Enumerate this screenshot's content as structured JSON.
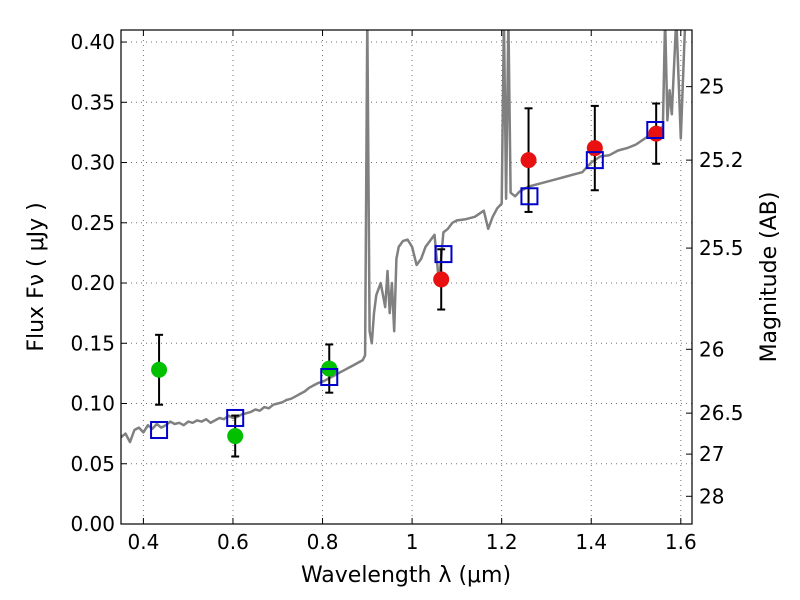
{
  "chart_data": {
    "type": "scatter",
    "xlabel": "Wavelength  λ (μm)",
    "ylabel": "Flux  Fν  ( μJy )",
    "ylabel_right": "Magnitude (AB)",
    "xlim": [
      0.35,
      1.625
    ],
    "ylim": [
      0.0,
      0.41
    ],
    "xticks": [
      0.4,
      0.6,
      0.8,
      1.0,
      1.2,
      1.4,
      1.6
    ],
    "xtick_labels": [
      "0.4",
      "0.6",
      "0.8",
      "1",
      "1.2",
      "1.4",
      "1.6"
    ],
    "yticks": [
      0.0,
      0.05,
      0.1,
      0.15,
      0.2,
      0.25,
      0.3,
      0.35,
      0.4
    ],
    "ytick_labels": [
      "0.00",
      "0.05",
      "0.10",
      "0.15",
      "0.20",
      "0.25",
      "0.30",
      "0.35",
      "0.40"
    ],
    "right_ticks": [
      {
        "label": "25",
        "flux": 0.363
      },
      {
        "label": "25.2",
        "flux": 0.302
      },
      {
        "label": "25.5",
        "flux": 0.229
      },
      {
        "label": "26",
        "flux": 0.145
      },
      {
        "label": "26.5",
        "flux": 0.092
      },
      {
        "label": "27",
        "flux": 0.058
      },
      {
        "label": "28",
        "flux": 0.023
      }
    ],
    "grid": true,
    "colors": {
      "model": "#808080",
      "green": "#00c000",
      "red": "#e81010",
      "model_points": "#0000cc",
      "errorbar": "#000000"
    },
    "series": [
      {
        "kind": "line",
        "x": [
          0.35,
          0.36,
          0.37,
          0.38,
          0.39,
          0.4,
          0.41,
          0.42,
          0.43,
          0.44,
          0.45,
          0.46,
          0.47,
          0.48,
          0.49,
          0.5,
          0.51,
          0.52,
          0.53,
          0.54,
          0.55,
          0.56,
          0.57,
          0.58,
          0.59,
          0.6,
          0.61,
          0.62,
          0.63,
          0.64,
          0.65,
          0.66,
          0.67,
          0.68,
          0.69,
          0.7,
          0.71,
          0.72,
          0.73,
          0.74,
          0.75,
          0.76,
          0.77,
          0.78,
          0.79,
          0.8,
          0.81,
          0.82,
          0.83,
          0.84,
          0.85,
          0.86,
          0.87,
          0.88,
          0.89,
          0.895,
          0.9,
          0.905,
          0.91,
          0.915,
          0.92,
          0.93,
          0.94,
          0.945,
          0.95,
          0.955,
          0.96,
          0.965,
          0.97,
          0.98,
          0.99,
          1.0,
          1.01,
          1.02,
          1.03,
          1.04,
          1.05,
          1.06,
          1.07,
          1.08,
          1.09,
          1.1,
          1.12,
          1.14,
          1.16,
          1.17,
          1.18,
          1.19,
          1.2,
          1.205,
          1.21,
          1.215,
          1.22,
          1.23,
          1.24,
          1.26,
          1.28,
          1.3,
          1.32,
          1.34,
          1.36,
          1.38,
          1.4,
          1.42,
          1.44,
          1.46,
          1.48,
          1.5,
          1.52,
          1.54,
          1.56,
          1.565,
          1.57,
          1.575,
          1.58,
          1.59,
          1.6,
          1.61,
          1.62
        ],
        "y": [
          0.072,
          0.075,
          0.068,
          0.078,
          0.08,
          0.076,
          0.082,
          0.079,
          0.083,
          0.08,
          0.082,
          0.085,
          0.083,
          0.084,
          0.082,
          0.085,
          0.084,
          0.086,
          0.085,
          0.087,
          0.084,
          0.086,
          0.088,
          0.087,
          0.09,
          0.088,
          0.089,
          0.091,
          0.092,
          0.093,
          0.095,
          0.094,
          0.097,
          0.096,
          0.099,
          0.1,
          0.101,
          0.103,
          0.104,
          0.106,
          0.108,
          0.11,
          0.113,
          0.115,
          0.117,
          0.118,
          0.12,
          0.122,
          0.124,
          0.126,
          0.128,
          0.13,
          0.132,
          0.134,
          0.136,
          0.14,
          0.42,
          0.16,
          0.15,
          0.175,
          0.19,
          0.2,
          0.18,
          0.21,
          0.175,
          0.2,
          0.16,
          0.22,
          0.23,
          0.235,
          0.236,
          0.23,
          0.215,
          0.22,
          0.23,
          0.235,
          0.24,
          0.2,
          0.242,
          0.245,
          0.25,
          0.252,
          0.253,
          0.255,
          0.26,
          0.245,
          0.255,
          0.262,
          0.266,
          0.42,
          0.27,
          0.42,
          0.275,
          0.272,
          0.276,
          0.28,
          0.282,
          0.284,
          0.286,
          0.288,
          0.29,
          0.292,
          0.3,
          0.305,
          0.306,
          0.31,
          0.312,
          0.315,
          0.32,
          0.325,
          0.33,
          0.42,
          0.335,
          0.36,
          0.34,
          0.42,
          0.32,
          0.42,
          0.42
        ]
      },
      {
        "kind": "scatter-errorbar",
        "marker": "circle",
        "x": [
          0.435,
          0.605,
          0.815
        ],
        "y": [
          0.128,
          0.073,
          0.129
        ],
        "yerr": [
          0.029,
          0.017,
          0.02
        ]
      },
      {
        "kind": "scatter-errorbar",
        "marker": "circle",
        "x": [
          1.065,
          1.26,
          1.408,
          1.545
        ],
        "y": [
          0.203,
          0.302,
          0.312,
          0.324
        ],
        "yerr": [
          0.025,
          0.043,
          0.035,
          0.025
        ]
      },
      {
        "kind": "scatter",
        "marker": "square",
        "x": [
          0.435,
          0.605,
          0.815,
          1.07,
          1.262,
          1.408,
          1.543
        ],
        "y": [
          0.078,
          0.088,
          0.122,
          0.224,
          0.272,
          0.302,
          0.327
        ]
      }
    ]
  }
}
